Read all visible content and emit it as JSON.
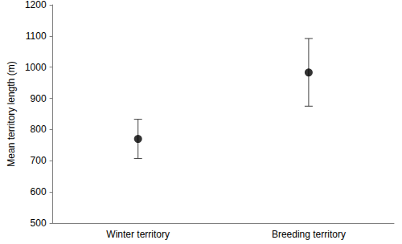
{
  "chart_data": {
    "type": "scatter",
    "categories": [
      "Winter territory",
      "Breeding territory"
    ],
    "values": [
      770,
      983
    ],
    "error_lower": [
      707,
      875
    ],
    "error_upper": [
      833,
      1092
    ],
    "color": "#000000",
    "y_label": "Mean territory length (m)",
    "ylim": [
      500,
      1200
    ],
    "yticks": [
      500,
      600,
      700,
      800,
      900,
      1000,
      1100,
      1200
    ],
    "grid": false
  }
}
